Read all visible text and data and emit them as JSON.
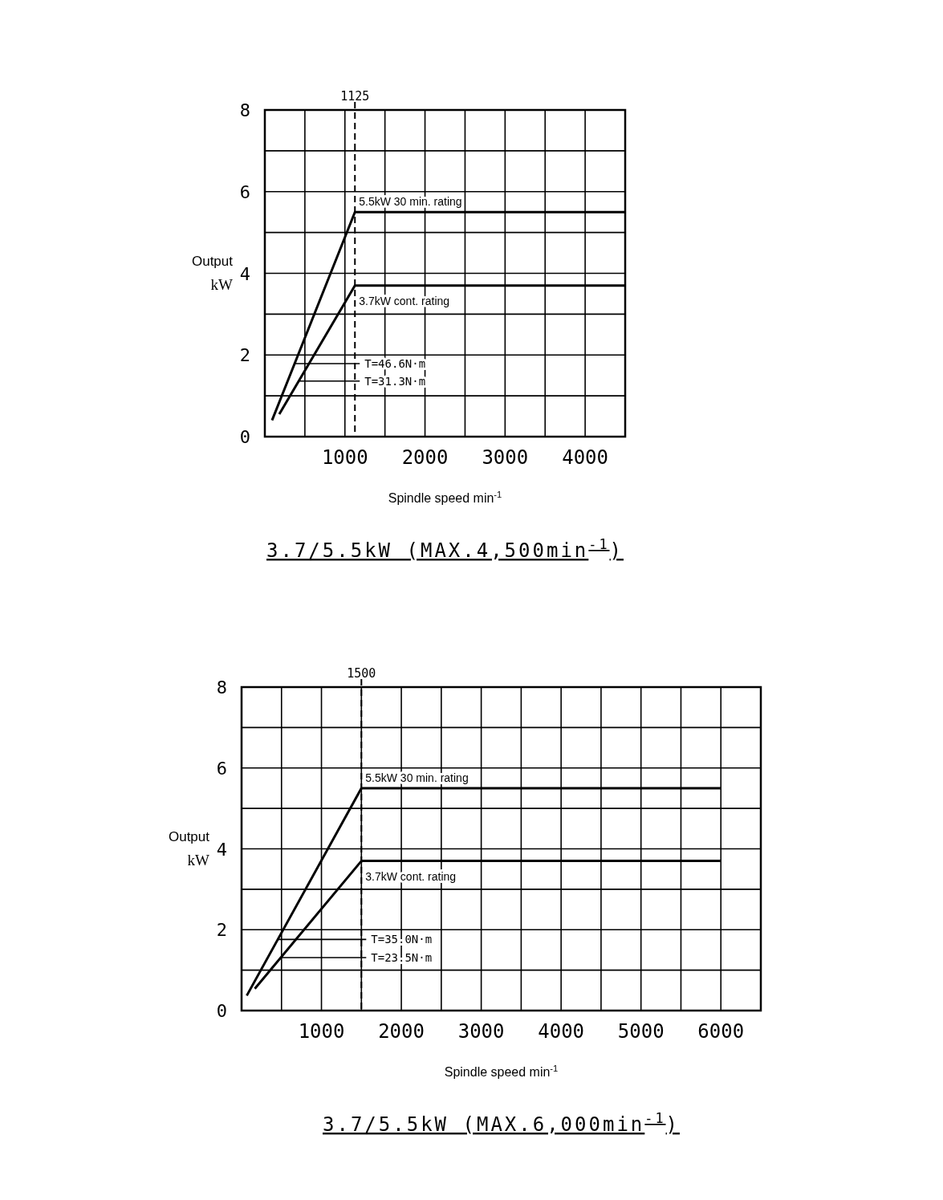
{
  "chart_data": [
    {
      "type": "line",
      "xlabel": "Spindle speed min$^{-1}$",
      "ylabel": "Output kW",
      "title": "3.7/5.5kW (MAX.4,500min$^{-1}$)",
      "xlim": [
        0,
        4500
      ],
      "ylim": [
        0,
        8
      ],
      "xticks": [
        {
          "value": 500,
          "label": null
        },
        1000,
        {
          "value": 1500,
          "label": null
        },
        2000,
        {
          "value": 2500,
          "label": null
        },
        3000,
        {
          "value": 3500,
          "label": null
        },
        4000
      ],
      "yticks": [
        0,
        {
          "value": 1,
          "label": null
        },
        2,
        {
          "value": 3,
          "label": null
        },
        4,
        {
          "value": 5,
          "label": null
        },
        6,
        {
          "value": 7,
          "label": null
        },
        8
      ],
      "grid": true,
      "marker": "none",
      "line_style": "solid",
      "series": [
        {
          "color": "#000000",
          "x": [
            90,
            1125,
            4500
          ],
          "values": [
            0.4,
            5.5,
            5.5
          ]
        },
        {
          "color": "#000000",
          "x": [
            180,
            1125,
            4500
          ],
          "values": [
            0.55,
            3.7,
            3.7
          ]
        }
      ],
      "ref_lines": [
        {
          "axis": "x",
          "value": 1125,
          "label": "1125",
          "line_style": "dashed"
        }
      ],
      "annotations": [
        {
          "text": "5.5kW 30 min. rating",
          "x": 1125,
          "y": 5.5
        },
        {
          "text": "3.7kW cont. rating",
          "x": 1125,
          "y": 3.7
        },
        {
          "text": "T=46.6N·m",
          "x": 372,
          "y": 1.79
        },
        {
          "text": "T=31.3N·m",
          "x": 423,
          "y": 1.36
        }
      ]
    },
    {
      "type": "line",
      "xlabel": "Spindle speed min$^{-1}$",
      "ylabel": "Output kW",
      "title": "3.7/5.5kW (MAX.6,000min$^{-1}$)",
      "xlim": [
        0,
        6500
      ],
      "ylim": [
        0,
        8
      ],
      "xticks": [
        {
          "value": 500,
          "label": null
        },
        1000,
        {
          "value": 1500,
          "label": null
        },
        2000,
        {
          "value": 2500,
          "label": null
        },
        3000,
        {
          "value": 3500,
          "label": null
        },
        4000,
        {
          "value": 4500,
          "label": null
        },
        5000,
        {
          "value": 5500,
          "label": null
        },
        6000
      ],
      "yticks": [
        0,
        {
          "value": 1,
          "label": null
        },
        2,
        {
          "value": 3,
          "label": null
        },
        4,
        {
          "value": 5,
          "label": null
        },
        6,
        {
          "value": 7,
          "label": null
        },
        8
      ],
      "grid": true,
      "marker": "none",
      "line_style": "solid",
      "series": [
        {
          "color": "#000000",
          "x": [
            65,
            1500,
            6000
          ],
          "values": [
            0.37,
            5.5,
            5.5
          ]
        },
        {
          "color": "#000000",
          "x": [
            166,
            1500,
            6000
          ],
          "values": [
            0.54,
            3.7,
            3.7
          ]
        }
      ],
      "ref_lines": [
        {
          "axis": "x",
          "value": 1500,
          "label": "1500",
          "line_style": "dashed"
        }
      ],
      "annotations": [
        {
          "text": "5.5kW 30 min. rating",
          "x": 1500,
          "y": 5.5
        },
        {
          "text": "3.7kW cont. rating",
          "x": 1500,
          "y": 3.7
        },
        {
          "text": "T=35.0N·m",
          "x": 454,
          "y": 1.76
        },
        {
          "text": "T=23.5N·m",
          "x": 491,
          "y": 1.31
        }
      ]
    }
  ]
}
